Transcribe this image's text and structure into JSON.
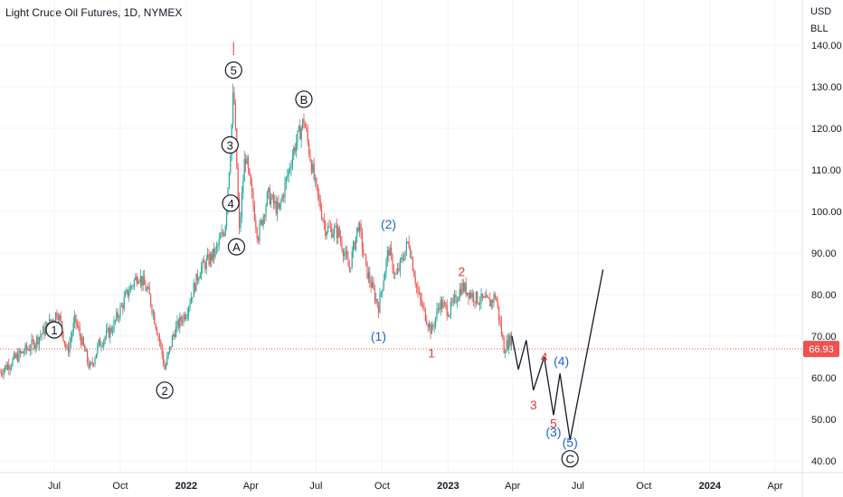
{
  "title": "Light Crude Oil Futures, 1D, NYMEX",
  "currency": "USD",
  "unit": "BLL",
  "colors": {
    "up": "#26a69a",
    "down": "#ef5350",
    "wave_black": "#131722",
    "wave_red": "#e53935",
    "wave_blue": "#1e63d6",
    "last_price_bg": "#ef5350",
    "last_price_line": "#ef5350",
    "projection": "#131722"
  },
  "chart_data": {
    "type": "candlestick",
    "y_ticks": [
      40,
      50,
      60,
      70,
      80,
      90,
      100,
      110,
      120,
      130,
      140
    ],
    "y_tick_labels": [
      "40.00",
      "50.00",
      "60.00",
      "70.00",
      "80.00",
      "90.00",
      "100.00",
      "110.00",
      "120.00",
      "130.00",
      "140.00"
    ],
    "x_tick_labels": [
      "Jul",
      "Oct",
      "2022",
      "Apr",
      "Jul",
      "Oct",
      "2023",
      "Apr",
      "Jul",
      "Oct",
      "2024",
      "Apr"
    ],
    "x_tick_dates": [
      "2021-07-01",
      "2021-10-01",
      "2022-01-01",
      "2022-04-01",
      "2022-07-01",
      "2022-10-01",
      "2023-01-01",
      "2023-04-01",
      "2023-07-01",
      "2023-10-01",
      "2024-01-01",
      "2024-04-01"
    ],
    "bold_x_labels": [
      "2022",
      "2023",
      "2024"
    ],
    "last_price": 66.93,
    "last_price_label": "66.93",
    "price_path": [
      [
        "2021-04-01",
        59
      ],
      [
        "2021-04-20",
        62
      ],
      [
        "2021-05-10",
        65
      ],
      [
        "2021-06-01",
        68
      ],
      [
        "2021-06-20",
        72
      ],
      [
        "2021-07-06",
        76
      ],
      [
        "2021-07-19",
        66
      ],
      [
        "2021-07-30",
        74
      ],
      [
        "2021-08-20",
        62
      ],
      [
        "2021-09-01",
        68
      ],
      [
        "2021-09-20",
        72
      ],
      [
        "2021-10-10",
        80
      ],
      [
        "2021-10-26",
        85
      ],
      [
        "2021-11-10",
        80
      ],
      [
        "2021-11-26",
        68
      ],
      [
        "2021-12-02",
        62
      ],
      [
        "2021-12-15",
        71
      ],
      [
        "2022-01-01",
        76
      ],
      [
        "2022-01-20",
        86
      ],
      [
        "2022-02-10",
        90
      ],
      [
        "2022-02-24",
        96
      ],
      [
        "2022-03-04",
        116
      ],
      [
        "2022-03-08",
        130
      ],
      [
        "2022-03-16",
        95
      ],
      [
        "2022-03-24",
        114
      ],
      [
        "2022-04-11",
        94
      ],
      [
        "2022-04-25",
        104
      ],
      [
        "2022-05-10",
        100
      ],
      [
        "2022-05-31",
        115
      ],
      [
        "2022-06-14",
        122
      ],
      [
        "2022-06-30",
        106
      ],
      [
        "2022-07-14",
        96
      ],
      [
        "2022-08-01",
        95
      ],
      [
        "2022-08-16",
        86
      ],
      [
        "2022-08-29",
        97
      ],
      [
        "2022-09-09",
        86
      ],
      [
        "2022-09-26",
        77
      ],
      [
        "2022-10-10",
        91
      ],
      [
        "2022-10-20",
        84
      ],
      [
        "2022-11-07",
        93
      ],
      [
        "2022-11-20",
        80
      ],
      [
        "2022-12-09",
        71
      ],
      [
        "2022-12-20",
        78
      ],
      [
        "2023-01-03",
        76
      ],
      [
        "2023-01-20",
        82
      ],
      [
        "2023-02-10",
        79
      ],
      [
        "2023-03-01",
        78
      ],
      [
        "2023-03-08",
        80
      ],
      [
        "2023-03-20",
        67
      ],
      [
        "2023-03-31",
        70
      ]
    ],
    "projection_path": [
      [
        "2023-03-31",
        70
      ],
      [
        "2023-04-09",
        62
      ],
      [
        "2023-04-20",
        69
      ],
      [
        "2023-04-30",
        57
      ],
      [
        "2023-05-15",
        65
      ],
      [
        "2023-05-28",
        51
      ],
      [
        "2023-06-06",
        61
      ],
      [
        "2023-06-20",
        45
      ],
      [
        "2023-08-05",
        86
      ]
    ],
    "wave_labels": [
      {
        "text": "1",
        "style": "circle",
        "color": "black",
        "date": "2021-07-01",
        "price": 71.5
      },
      {
        "text": "2",
        "style": "circle",
        "color": "black",
        "date": "2021-12-02",
        "price": 57
      },
      {
        "text": "3",
        "style": "circle",
        "color": "black",
        "date": "2022-03-03",
        "price": 116
      },
      {
        "text": "4",
        "style": "circle",
        "color": "black",
        "date": "2022-03-04",
        "price": 102
      },
      {
        "text": "5",
        "style": "circle",
        "color": "black",
        "date": "2022-03-08",
        "price": 134
      },
      {
        "text": "A",
        "style": "circle",
        "color": "black",
        "date": "2022-03-12",
        "price": 91.5
      },
      {
        "text": "B",
        "style": "circle",
        "color": "black",
        "date": "2022-06-14",
        "price": 127
      },
      {
        "text": "C",
        "style": "circle",
        "color": "black",
        "date": "2023-06-20",
        "price": 40.5
      },
      {
        "text": "(1)",
        "style": "plain",
        "color": "blue",
        "date": "2022-09-26",
        "price": 70
      },
      {
        "text": "(2)",
        "style": "plain",
        "color": "blue",
        "date": "2022-10-10",
        "price": 97
      },
      {
        "text": "(3)",
        "style": "plain",
        "color": "blue",
        "date": "2023-05-28",
        "price": 47
      },
      {
        "text": "(4)",
        "style": "plain",
        "color": "blue",
        "date": "2023-06-08",
        "price": 64
      },
      {
        "text": "(5)",
        "style": "plain",
        "color": "blue",
        "date": "2023-06-20",
        "price": 44.5
      },
      {
        "text": "1",
        "style": "plain",
        "color": "red",
        "date": "2022-12-09",
        "price": 66
      },
      {
        "text": "2",
        "style": "plain",
        "color": "red",
        "date": "2023-01-20",
        "price": 85.5
      },
      {
        "text": "3",
        "style": "plain",
        "color": "red",
        "date": "2023-04-30",
        "price": 53.5
      },
      {
        "text": "4",
        "style": "plain",
        "color": "red",
        "date": "2023-05-15",
        "price": 65
      },
      {
        "text": "5",
        "style": "plain",
        "color": "red",
        "date": "2023-05-28",
        "price": 49
      }
    ]
  }
}
